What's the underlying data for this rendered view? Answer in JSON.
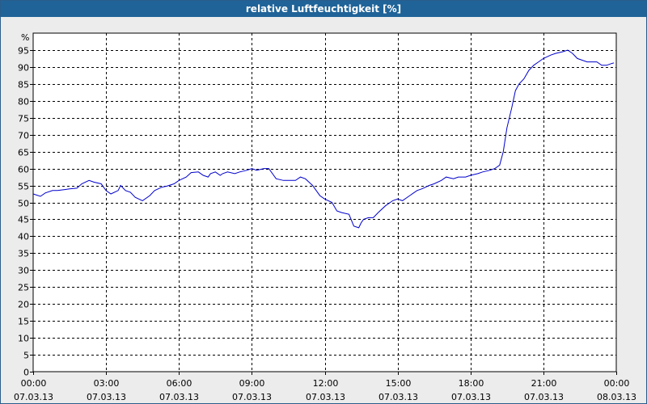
{
  "chart_data": {
    "type": "line",
    "title": "relative Luftfeuchtigkeit [%]",
    "ylabel": "%",
    "xlabel": "",
    "ylim": [
      0,
      100
    ],
    "xlim": [
      0,
      24
    ],
    "grid": true,
    "colors": {
      "line": "#0000cc",
      "title_bg": "#1f6398",
      "plot_bg": "#ffffff",
      "grid": "#000000"
    },
    "y_ticks": [
      0,
      5,
      10,
      15,
      20,
      25,
      30,
      35,
      40,
      45,
      50,
      55,
      60,
      65,
      70,
      75,
      80,
      85,
      90,
      95
    ],
    "x_ticks": [
      {
        "x": 0,
        "time": "00:00",
        "date": "07.03.13"
      },
      {
        "x": 3,
        "time": "03:00",
        "date": "07.03.13"
      },
      {
        "x": 6,
        "time": "06:00",
        "date": "07.03.13"
      },
      {
        "x": 9,
        "time": "09:00",
        "date": "07.03.13"
      },
      {
        "x": 12,
        "time": "12:00",
        "date": "07.03.13"
      },
      {
        "x": 15,
        "time": "15:00",
        "date": "07.03.13"
      },
      {
        "x": 18,
        "time": "18:00",
        "date": "07.03.13"
      },
      {
        "x": 21,
        "time": "21:00",
        "date": "07.03.13"
      },
      {
        "x": 24,
        "time": "00:00",
        "date": "08.03.13"
      }
    ],
    "series": [
      {
        "x": [
          0,
          0.3,
          0.5,
          0.8,
          1.0,
          1.3,
          1.5,
          1.8,
          2.0,
          2.3,
          2.5,
          2.8,
          3.0,
          3.2,
          3.5,
          3.6,
          3.8,
          4.0,
          4.2,
          4.5,
          4.8,
          5.0,
          5.3,
          5.5,
          5.8,
          6.0,
          6.3,
          6.5,
          6.8,
          7.0,
          7.2,
          7.3,
          7.5,
          7.7,
          7.8,
          8.0,
          8.3,
          8.5,
          8.8,
          9.0,
          9.2,
          9.5,
          9.7,
          10.0,
          10.3,
          10.5,
          10.8,
          11.0,
          11.2,
          11.5,
          11.8,
          12.0,
          12.3,
          12.5,
          12.7,
          13.0,
          13.2,
          13.4,
          13.5,
          13.6,
          13.8,
          14.0,
          14.2,
          14.5,
          14.8,
          15.0,
          15.2,
          15.5,
          15.8,
          16.0,
          16.3,
          16.5,
          16.8,
          17.0,
          17.3,
          17.5,
          17.8,
          18.0,
          18.3,
          18.5,
          18.8,
          19.0,
          19.2,
          19.35,
          19.5,
          19.7,
          19.85,
          20.0,
          20.2,
          20.4,
          20.6,
          20.8,
          21.0,
          21.3,
          21.5,
          21.8,
          22.0,
          22.2,
          22.4,
          22.6,
          22.8,
          23.0,
          23.2,
          23.4,
          23.5,
          23.6,
          23.8,
          23.9
        ],
        "y": [
          52.5,
          51.8,
          52.8,
          53.5,
          53.5,
          53.8,
          54.0,
          54.2,
          55.5,
          56.5,
          56.0,
          55.5,
          53.5,
          52.5,
          53.5,
          55.0,
          53.5,
          53.0,
          51.5,
          50.5,
          52.0,
          53.5,
          54.5,
          54.8,
          55.5,
          56.5,
          57.5,
          58.8,
          59.0,
          58.0,
          57.5,
          58.5,
          59.0,
          58.0,
          58.5,
          59.0,
          58.5,
          59.0,
          59.5,
          60.0,
          59.5,
          60.0,
          60.0,
          57.0,
          56.5,
          56.5,
          56.5,
          57.5,
          57.0,
          55.0,
          52.0,
          51.0,
          50.0,
          47.5,
          47.0,
          46.5,
          43.0,
          42.5,
          44.0,
          45.0,
          45.5,
          45.5,
          47.0,
          49.0,
          50.5,
          51.0,
          50.5,
          52.0,
          53.5,
          54.0,
          55.0,
          55.5,
          56.5,
          57.5,
          57.0,
          57.5,
          57.5,
          58.0,
          58.5,
          59.0,
          59.5,
          60.0,
          61.0,
          65.0,
          72.0,
          78.0,
          83.0,
          85.0,
          86.5,
          89.0,
          90.5,
          91.5,
          92.5,
          93.5,
          94.0,
          94.5,
          95.0,
          94.0,
          92.5,
          92.0,
          91.5,
          91.5,
          91.5,
          90.5,
          90.5,
          90.5,
          91.0,
          91.2
        ]
      }
    ]
  }
}
